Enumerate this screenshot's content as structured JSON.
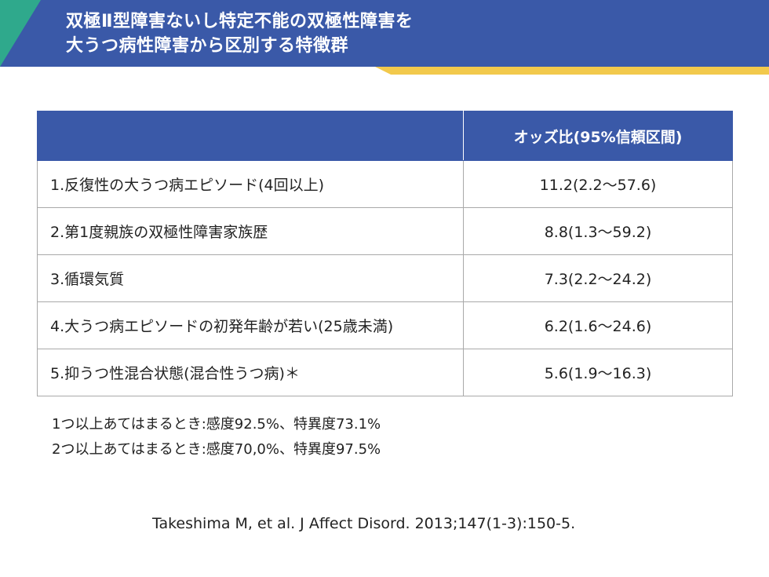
{
  "header": {
    "title_line1": "双極Ⅱ型障害ないし特定不能の双極性障害を",
    "title_line2": "大うつ病性障害から区別する特徴群",
    "colors": {
      "bar": "#3a59a8",
      "teal": "#2fa98c",
      "yellow": "#f2c94c"
    }
  },
  "table": {
    "headers": [
      "",
      "オッズ比(95%信頼区間)"
    ],
    "rows": [
      {
        "label": "1.反復性の大うつ病エピソード(4回以上)",
        "value": "11.2(2.2〜57.6)"
      },
      {
        "label": "2.第1度親族の双極性障害家族歴",
        "value": "8.8(1.3〜59.2)"
      },
      {
        "label": "3.循環気質",
        "value": "7.3(2.2〜24.2)"
      },
      {
        "label": "4.大うつ病エピソードの初発年齢が若い(25歳未満)",
        "value": "6.2(1.6〜24.6)"
      },
      {
        "label": "5.抑うつ性混合状態(混合性うつ病)＊",
        "value": "5.6(1.9〜16.3)"
      }
    ]
  },
  "notes": [
    "1つ以上あてはまるとき:感度92.5%、特異度73.1%",
    "2つ以上あてはまるとき:感度70,0%、特異度97.5%"
  ],
  "citation": "Takeshima M, et al. J Affect Disord. 2013;147(1-3):150-5."
}
